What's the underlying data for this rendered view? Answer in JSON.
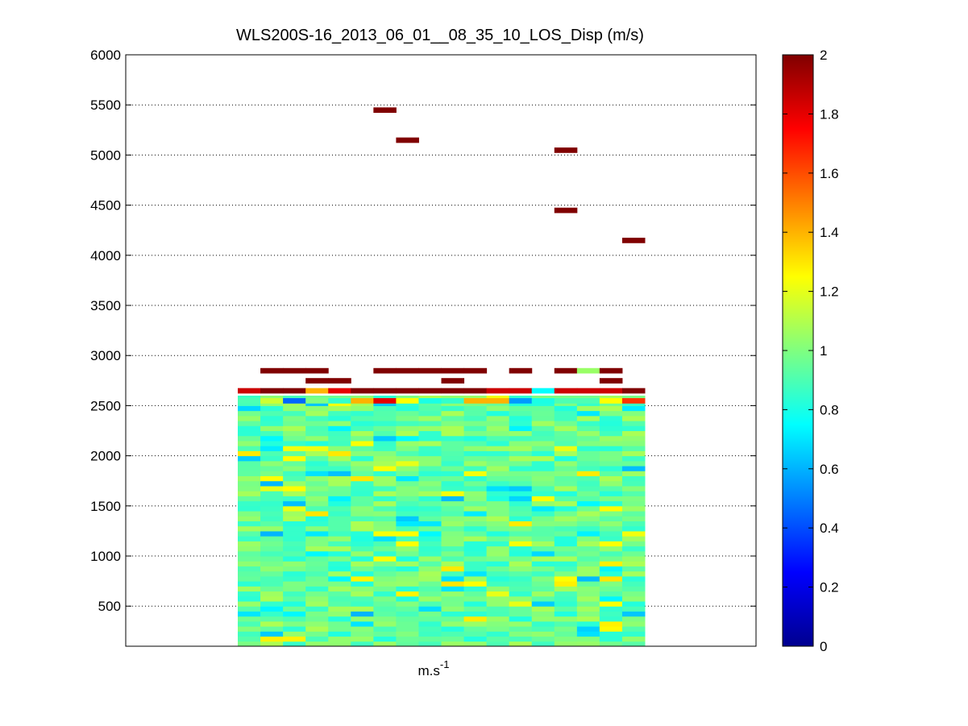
{
  "chart_data": {
    "type": "heatmap",
    "title": "WLS200S-16_2013_06_01__08_35_10_LOS_Disp (m/s)",
    "xlabel": "m.s",
    "xlabel_superscript": "-1",
    "ylim": [
      100,
      6000
    ],
    "y_ticks": [
      500,
      1000,
      1500,
      2000,
      2500,
      3000,
      3500,
      4000,
      4500,
      5000,
      5500,
      6000
    ],
    "y_tick_labels": [
      "500",
      "1000",
      "1500",
      "2000",
      "2500",
      "3000",
      "3500",
      "4000",
      "4500",
      "5000",
      "5500",
      "6000"
    ],
    "y_grid": "dotted",
    "colormap": "jet",
    "clim": [
      0,
      2
    ],
    "colorbar_ticks": [
      "0",
      "0.2",
      "0.4",
      "0.6",
      "0.8",
      "1",
      "1.2",
      "1.4",
      "1.6",
      "1.8",
      "2"
    ],
    "column_count": 18,
    "row_height_m": 50,
    "lower_block": {
      "altitude_range": [
        100,
        2600
      ],
      "typical_value": 0.95,
      "value_range": [
        0.6,
        1.3
      ]
    },
    "upper_rows": [
      {
        "altitude": 2525,
        "values": [
          0.9,
          1.15,
          0.45,
          1.0,
          0.85,
          1.4,
          1.8,
          1.25,
          0.8,
          0.85,
          1.4,
          1.4,
          0.55,
          0.8,
          0.9,
          0.9,
          1.25,
          1.65
        ]
      },
      {
        "altitude": 2625,
        "values": [
          1.85,
          2.0,
          2.0,
          1.4,
          1.8,
          2.0,
          2.0,
          2.0,
          2.0,
          2.0,
          2.0,
          1.85,
          1.85,
          0.75,
          1.85,
          1.85,
          1.85,
          2.0
        ]
      },
      {
        "altitude": 2725,
        "values": [
          null,
          null,
          null,
          2.0,
          2.0,
          null,
          null,
          null,
          null,
          2.0,
          null,
          null,
          null,
          null,
          null,
          null,
          2.0,
          null
        ]
      },
      {
        "altitude": 2825,
        "values": [
          null,
          2.0,
          2.0,
          2.0,
          null,
          null,
          2.0,
          2.0,
          2.0,
          2.0,
          2.0,
          null,
          2.0,
          null,
          2.0,
          1.05,
          2.0,
          null
        ]
      },
      {
        "altitude": 4125,
        "values": [
          null,
          null,
          null,
          null,
          null,
          null,
          null,
          null,
          null,
          null,
          null,
          null,
          null,
          null,
          null,
          null,
          null,
          2.0
        ]
      },
      {
        "altitude": 4425,
        "values": [
          null,
          null,
          null,
          null,
          null,
          null,
          null,
          null,
          null,
          null,
          null,
          null,
          null,
          null,
          2.0,
          null,
          null,
          null
        ]
      },
      {
        "altitude": 5025,
        "values": [
          null,
          null,
          null,
          null,
          null,
          null,
          null,
          null,
          null,
          null,
          null,
          null,
          null,
          null,
          2.0,
          null,
          null,
          null
        ]
      },
      {
        "altitude": 5125,
        "values": [
          null,
          null,
          null,
          null,
          null,
          null,
          null,
          2.0,
          null,
          null,
          null,
          null,
          null,
          null,
          null,
          null,
          null,
          null
        ]
      },
      {
        "altitude": 5425,
        "values": [
          null,
          null,
          null,
          null,
          null,
          null,
          2.0,
          null,
          null,
          null,
          null,
          null,
          null,
          null,
          null,
          null,
          null,
          null
        ]
      }
    ]
  }
}
